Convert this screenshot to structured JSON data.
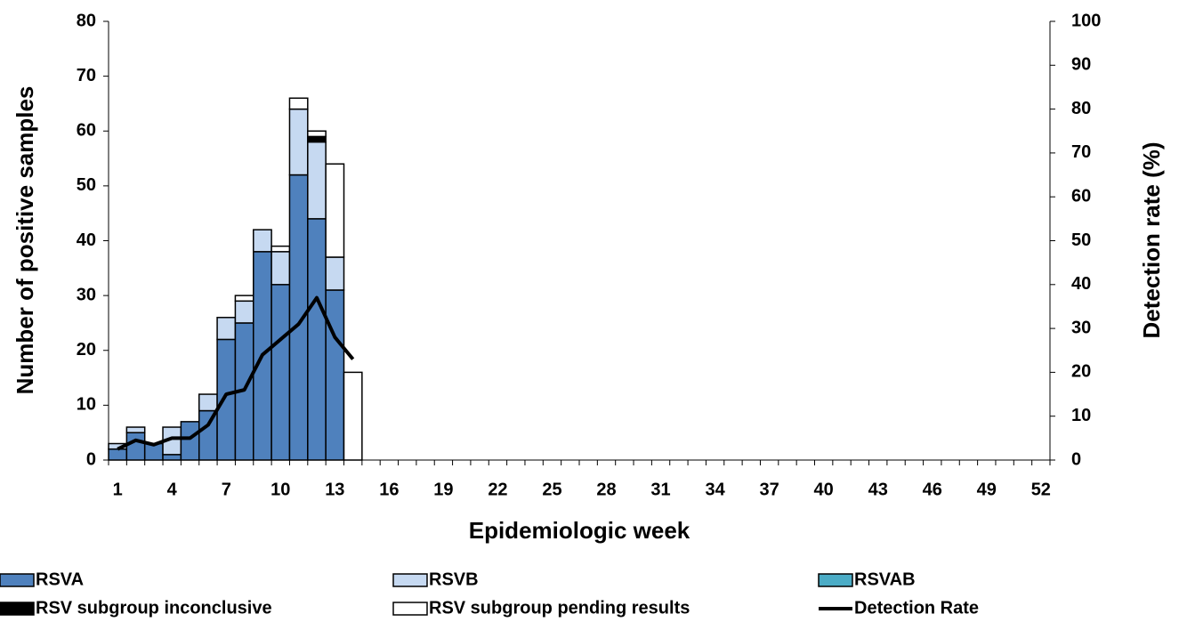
{
  "chart_data": {
    "type": "bar",
    "stacked": true,
    "xlabel": "Epidemiologic week",
    "ylabel": "Number of positive samples",
    "y2label": "Detection rate (%)",
    "categories": [
      "1",
      null,
      null,
      "4",
      null,
      null,
      "7",
      null,
      null,
      "10",
      null,
      null,
      "13",
      null,
      null,
      "16",
      null,
      null,
      "19",
      null,
      null,
      "22",
      null,
      null,
      "25",
      null,
      null,
      "28",
      null,
      null,
      "31",
      null,
      null,
      "34",
      null,
      null,
      "37",
      null,
      null,
      "40",
      null,
      null,
      "43",
      null,
      null,
      "46",
      null,
      null,
      "49",
      null,
      null,
      "52"
    ],
    "ylim": [
      0,
      80
    ],
    "yticks": [
      0,
      10,
      20,
      30,
      40,
      50,
      60,
      70,
      80
    ],
    "y2lim": [
      0,
      100
    ],
    "y2ticks": [
      0,
      10,
      20,
      30,
      40,
      50,
      60,
      70,
      80,
      90,
      100
    ],
    "series": [
      {
        "name": "RSVA",
        "color": "#4f81bd",
        "values": [
          2,
          5,
          3,
          1,
          7,
          9,
          22,
          25,
          38,
          32,
          52,
          44,
          31,
          0,
          0,
          0,
          0,
          0,
          0,
          0,
          0,
          0,
          0,
          0,
          0,
          0,
          0,
          0,
          0,
          0,
          0,
          0,
          0,
          0,
          0,
          0,
          0,
          0,
          0,
          0,
          0,
          0,
          0,
          0,
          0,
          0,
          0,
          0,
          0,
          0,
          0,
          0
        ]
      },
      {
        "name": "RSVB",
        "color": "#c6d9f1",
        "values": [
          1,
          1,
          0,
          5,
          0,
          3,
          4,
          4,
          4,
          6,
          12,
          14,
          6,
          0,
          0,
          0,
          0,
          0,
          0,
          0,
          0,
          0,
          0,
          0,
          0,
          0,
          0,
          0,
          0,
          0,
          0,
          0,
          0,
          0,
          0,
          0,
          0,
          0,
          0,
          0,
          0,
          0,
          0,
          0,
          0,
          0,
          0,
          0,
          0,
          0,
          0,
          0
        ]
      },
      {
        "name": "RSVAB",
        "color": "#4bacc6",
        "values": [
          0,
          0,
          0,
          0,
          0,
          0,
          0,
          0,
          0,
          0,
          0,
          0,
          0,
          0,
          0,
          0,
          0,
          0,
          0,
          0,
          0,
          0,
          0,
          0,
          0,
          0,
          0,
          0,
          0,
          0,
          0,
          0,
          0,
          0,
          0,
          0,
          0,
          0,
          0,
          0,
          0,
          0,
          0,
          0,
          0,
          0,
          0,
          0,
          0,
          0,
          0,
          0
        ]
      },
      {
        "name": "RSV subgroup inconclusive",
        "color": "#000000",
        "values": [
          0,
          0,
          0,
          0,
          0,
          0,
          0,
          0,
          0,
          0,
          0,
          1,
          0,
          0,
          0,
          0,
          0,
          0,
          0,
          0,
          0,
          0,
          0,
          0,
          0,
          0,
          0,
          0,
          0,
          0,
          0,
          0,
          0,
          0,
          0,
          0,
          0,
          0,
          0,
          0,
          0,
          0,
          0,
          0,
          0,
          0,
          0,
          0,
          0,
          0,
          0,
          0
        ]
      },
      {
        "name": "RSV subgroup pending results",
        "color": "#ffffff",
        "values": [
          0,
          0,
          0,
          0,
          0,
          0,
          0,
          1,
          0,
          1,
          2,
          1,
          17,
          16,
          0,
          0,
          0,
          0,
          0,
          0,
          0,
          0,
          0,
          0,
          0,
          0,
          0,
          0,
          0,
          0,
          0,
          0,
          0,
          0,
          0,
          0,
          0,
          0,
          0,
          0,
          0,
          0,
          0,
          0,
          0,
          0,
          0,
          0,
          0,
          0,
          0,
          0
        ]
      },
      {
        "name": "Detection Rate",
        "type": "line",
        "axis": "y2",
        "color": "#000000",
        "values": [
          2.5,
          4.5,
          3.5,
          5,
          5,
          8,
          15,
          16,
          24,
          27.5,
          31,
          37,
          28,
          23,
          null,
          null,
          null,
          null,
          null,
          null,
          null,
          null,
          null,
          null,
          null,
          null,
          null,
          null,
          null,
          null,
          null,
          null,
          null,
          null,
          null,
          null,
          null,
          null,
          null,
          null,
          null,
          null,
          null,
          null,
          null,
          null,
          null,
          null,
          null,
          null,
          null,
          null
        ]
      }
    ]
  }
}
